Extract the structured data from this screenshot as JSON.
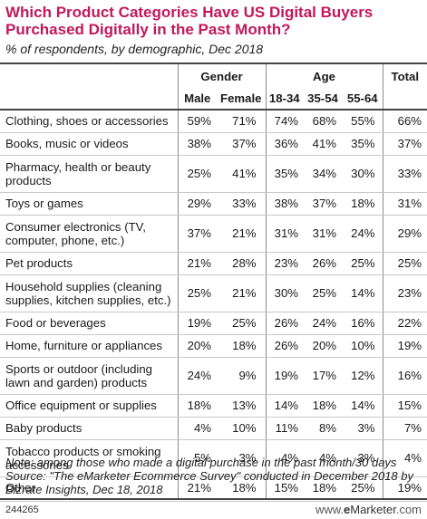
{
  "chart_data": {
    "type": "table",
    "title": "Which Product Categories Have US Digital Buyers Purchased Digitally in the Past Month?",
    "subtitle": "% of respondents, by demographic, Dec 2018",
    "group_headers": {
      "gender": "Gender",
      "age": "Age",
      "total": "Total"
    },
    "columns": [
      "Male",
      "Female",
      "18-34",
      "35-54",
      "55-64",
      "Total"
    ],
    "rows": [
      {
        "category": "Clothing, shoes or accessories",
        "values": [
          "59%",
          "71%",
          "74%",
          "68%",
          "55%",
          "66%"
        ]
      },
      {
        "category": "Books, music or videos",
        "values": [
          "38%",
          "37%",
          "36%",
          "41%",
          "35%",
          "37%"
        ]
      },
      {
        "category": "Pharmacy, health or beauty products",
        "values": [
          "25%",
          "41%",
          "35%",
          "34%",
          "30%",
          "33%"
        ]
      },
      {
        "category": "Toys or games",
        "values": [
          "29%",
          "33%",
          "38%",
          "37%",
          "18%",
          "31%"
        ]
      },
      {
        "category": "Consumer electronics (TV, computer, phone, etc.)",
        "values": [
          "37%",
          "21%",
          "31%",
          "31%",
          "24%",
          "29%"
        ]
      },
      {
        "category": "Pet products",
        "values": [
          "21%",
          "28%",
          "23%",
          "26%",
          "25%",
          "25%"
        ]
      },
      {
        "category": "Household supplies (cleaning supplies, kitchen supplies, etc.)",
        "values": [
          "25%",
          "21%",
          "30%",
          "25%",
          "14%",
          "23%"
        ]
      },
      {
        "category": "Food or beverages",
        "values": [
          "19%",
          "25%",
          "26%",
          "24%",
          "16%",
          "22%"
        ]
      },
      {
        "category": "Home, furniture or appliances",
        "values": [
          "20%",
          "18%",
          "26%",
          "20%",
          "10%",
          "19%"
        ]
      },
      {
        "category": "Sports or outdoor (including lawn and garden) products",
        "values": [
          "24%",
          "9%",
          "19%",
          "17%",
          "12%",
          "16%"
        ]
      },
      {
        "category": "Office equipment or supplies",
        "values": [
          "18%",
          "13%",
          "14%",
          "18%",
          "14%",
          "15%"
        ]
      },
      {
        "category": "Baby products",
        "values": [
          "4%",
          "10%",
          "11%",
          "8%",
          "3%",
          "7%"
        ]
      },
      {
        "category": "Tobacco products or smoking accessories",
        "values": [
          "5%",
          "3%",
          "4%",
          "4%",
          "3%",
          "4%"
        ]
      },
      {
        "category": "Other",
        "values": [
          "21%",
          "18%",
          "15%",
          "18%",
          "25%",
          "19%"
        ]
      }
    ],
    "note": "Note: among those who made a digital purchase in the past month/30 days",
    "source": "Source: \"The eMarketer Ecommerce Survey\" conducted in December 2018 by Bizrate Insights, Dec 18, 2018",
    "chart_id": "244265",
    "brand": {
      "prefix": "www.",
      "name_e": "e",
      "name_rest": "Marketer",
      "suffix": ".com"
    },
    "colors": {
      "title": "#c2185b",
      "rule": "#444444",
      "row_divider": "#c8c8c8"
    }
  }
}
